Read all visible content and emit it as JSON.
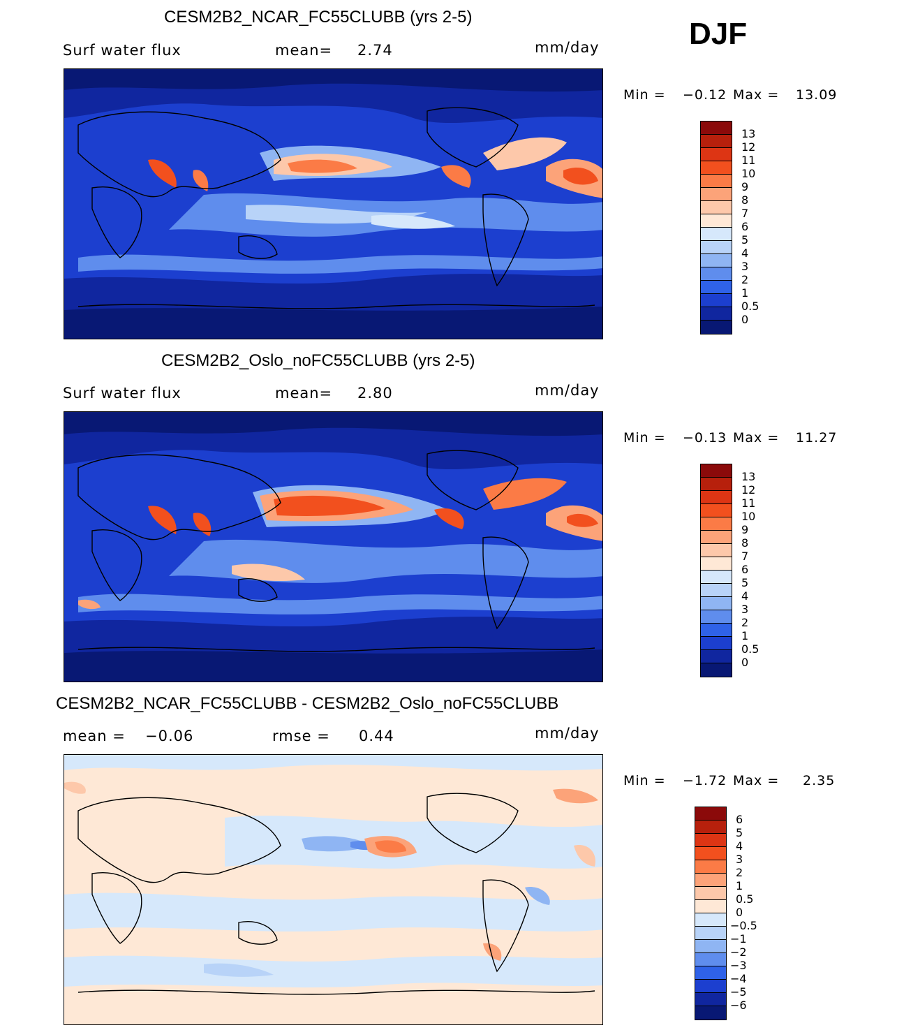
{
  "season": "DJF",
  "chart_data": [
    {
      "type": "heatmap",
      "title": "CESM2B2_NCAR_FC55CLUBB (yrs 2-5)",
      "variable": "Surf water flux",
      "stat_text": "mean=",
      "stat_value": "2.74",
      "units": "mm/day",
      "min_label": "Min =",
      "min_value": "−0.12",
      "max_label": "Max =",
      "max_value": "13.09",
      "levels": [
        "13",
        "12",
        "11",
        "10",
        "9",
        "8",
        "7",
        "6",
        "5",
        "4",
        "3",
        "2",
        "1",
        "0.5",
        "0"
      ],
      "colors": [
        "#8b0a0a",
        "#b7200c",
        "#dd3514",
        "#f2501e",
        "#fb7b46",
        "#fca379",
        "#fdc8aa",
        "#fee8d6",
        "#d6e8fb",
        "#b8d3f8",
        "#8fb5f3",
        "#5f8ded",
        "#2f62e8",
        "#1c3fcf",
        "#10269f",
        "#081874"
      ]
    },
    {
      "type": "heatmap",
      "title": "CESM2B2_Oslo_noFC55CLUBB (yrs 2-5)",
      "variable": "Surf water flux",
      "stat_text": "mean=",
      "stat_value": "2.80",
      "units": "mm/day",
      "min_label": "Min =",
      "min_value": "−0.13",
      "max_label": "Max =",
      "max_value": "11.27",
      "levels": [
        "13",
        "12",
        "11",
        "10",
        "9",
        "8",
        "7",
        "6",
        "5",
        "4",
        "3",
        "2",
        "1",
        "0.5",
        "0"
      ],
      "colors": [
        "#8b0a0a",
        "#b7200c",
        "#dd3514",
        "#f2501e",
        "#fb7b46",
        "#fca379",
        "#fdc8aa",
        "#fee8d6",
        "#d6e8fb",
        "#b8d3f8",
        "#8fb5f3",
        "#5f8ded",
        "#2f62e8",
        "#1c3fcf",
        "#10269f",
        "#081874"
      ]
    },
    {
      "type": "heatmap",
      "title": "CESM2B2_NCAR_FC55CLUBB - CESM2B2_Oslo_noFC55CLUBB",
      "stat_text": "mean =",
      "stat_value": "−0.06",
      "rmse_text": "rmse =",
      "rmse_value": "0.44",
      "units": "mm/day",
      "min_label": "Min =",
      "min_value": "−1.72",
      "max_label": "Max =",
      "max_value": "2.35",
      "levels": [
        "6",
        "5",
        "4",
        "3",
        "2",
        "1",
        "0.5",
        "0",
        "−0.5",
        "−1",
        "−2",
        "−3",
        "−4",
        "−5",
        "−6"
      ],
      "colors": [
        "#8b0a0a",
        "#b7200c",
        "#dd3514",
        "#f2501e",
        "#fb7b46",
        "#fca379",
        "#fdc8aa",
        "#fee8d6",
        "#d6e8fb",
        "#b8d3f8",
        "#8fb5f3",
        "#5f8ded",
        "#2f62e8",
        "#1c3fcf",
        "#10269f",
        "#081874"
      ]
    }
  ]
}
